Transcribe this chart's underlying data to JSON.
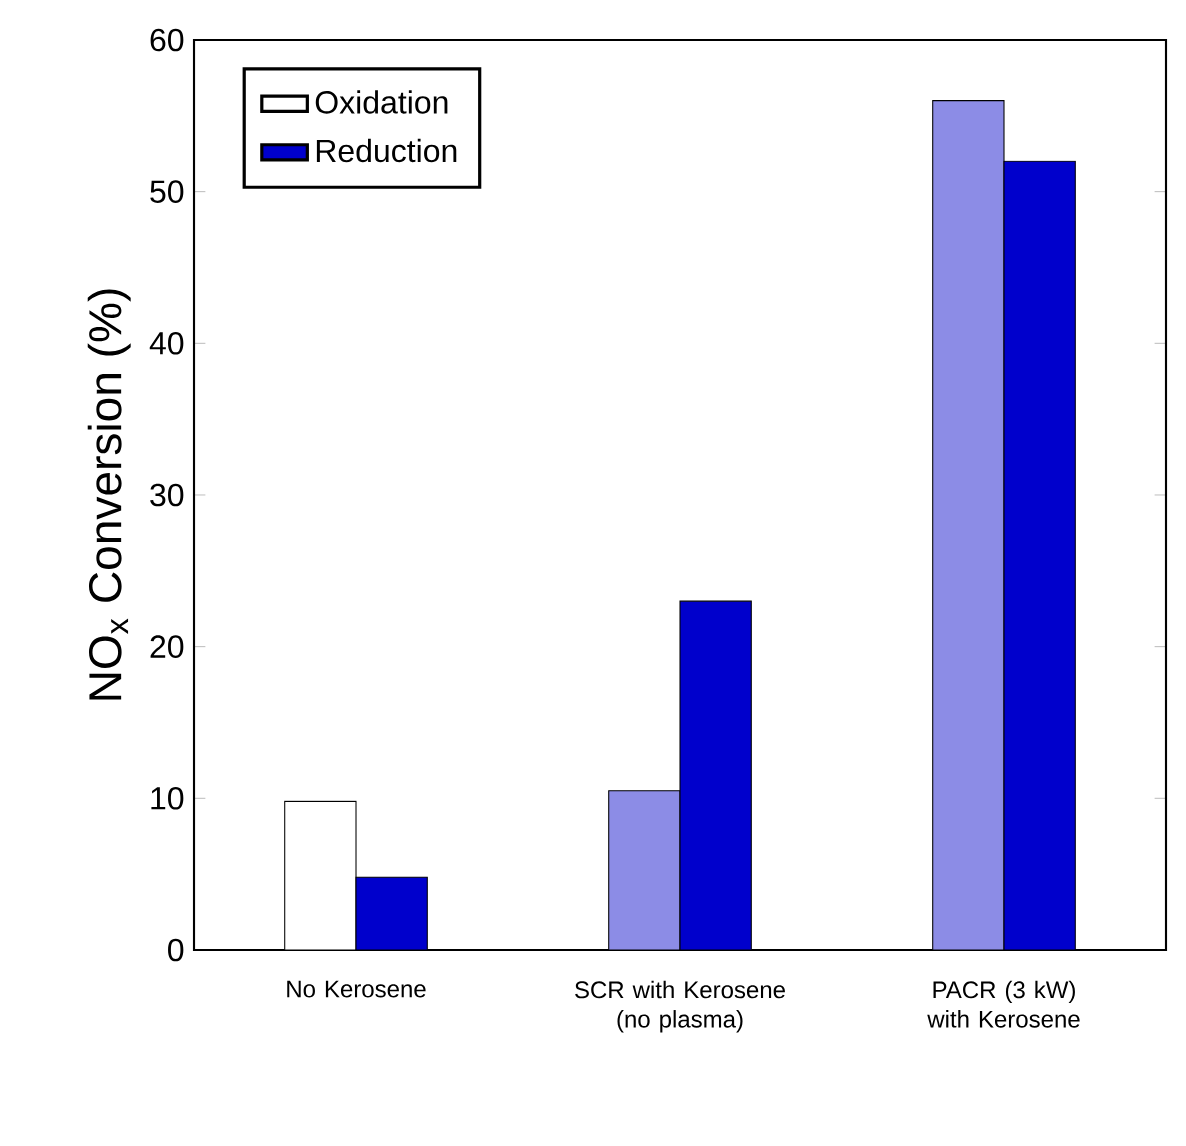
{
  "chart_data": {
    "type": "bar",
    "ylabel": "NO$_{x}$ Conversion (%)",
    "categories": [
      "No Kerosene",
      "SCR with Kerosene (no plasma)",
      "PACR (3 kW) with Kerosene"
    ],
    "series": [
      {
        "name": "Oxidation",
        "colors": [
          "#ffffff",
          "#8c8ce6",
          "#8c8ce6"
        ],
        "values": [
          9.8,
          10.5,
          56
        ]
      },
      {
        "name": "Reduction",
        "color": "#0000cc",
        "values": [
          4.8,
          23,
          52
        ]
      }
    ],
    "ylim": [
      0,
      60
    ],
    "yticks": [
      0,
      10,
      20,
      30,
      40,
      50,
      60
    ],
    "grid": false,
    "legend": "top left"
  }
}
